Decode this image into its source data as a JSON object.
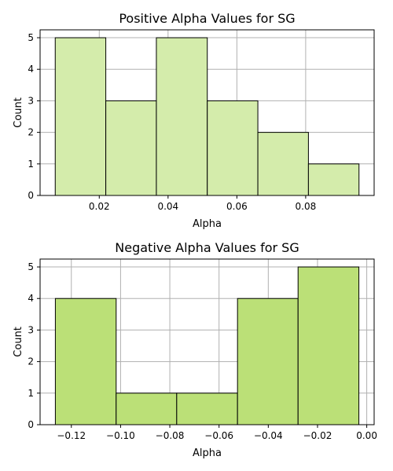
{
  "chart_data": [
    {
      "type": "bar",
      "title": "Positive Alpha Values for SG",
      "xlabel": "Alpha",
      "ylabel": "Count",
      "bins": [
        {
          "x0": 0.0072,
          "x1": 0.0219,
          "count": 5
        },
        {
          "x0": 0.0219,
          "x1": 0.0366,
          "count": 3
        },
        {
          "x0": 0.0366,
          "x1": 0.0514,
          "count": 5
        },
        {
          "x0": 0.0514,
          "x1": 0.0661,
          "count": 3
        },
        {
          "x0": 0.0661,
          "x1": 0.0808,
          "count": 2
        },
        {
          "x0": 0.0808,
          "x1": 0.0955,
          "count": 1
        }
      ],
      "xlim": [
        0.0028,
        0.0999
      ],
      "ylim": [
        0,
        5.25
      ],
      "xticks": [
        0.02,
        0.04,
        0.06,
        0.08
      ],
      "xtick_labels": [
        "0.02",
        "0.04",
        "0.06",
        "0.08"
      ],
      "yticks": [
        0,
        1,
        2,
        3,
        4,
        5
      ],
      "ytick_labels": [
        "0",
        "1",
        "2",
        "3",
        "4",
        "5"
      ],
      "grid": true,
      "bar_color": "#d4ecab",
      "edge_color": "#000000"
    },
    {
      "type": "bar",
      "title": "Negative Alpha Values for SG",
      "xlabel": "Alpha",
      "ylabel": "Count",
      "bins": [
        {
          "x0": -0.1265,
          "x1": -0.1018,
          "count": 4
        },
        {
          "x0": -0.1018,
          "x1": -0.0772,
          "count": 1
        },
        {
          "x0": -0.0772,
          "x1": -0.0525,
          "count": 1
        },
        {
          "x0": -0.0525,
          "x1": -0.0279,
          "count": 4
        },
        {
          "x0": -0.0279,
          "x1": -0.0032,
          "count": 5
        }
      ],
      "xlim": [
        -0.1327,
        0.003
      ],
      "ylim": [
        0,
        5.25
      ],
      "xticks": [
        -0.12,
        -0.1,
        -0.08,
        -0.06,
        -0.04,
        -0.02,
        0.0
      ],
      "xtick_labels": [
        "−0.12",
        "−0.10",
        "−0.08",
        "−0.06",
        "−0.04",
        "−0.02",
        "0.00"
      ],
      "yticks": [
        0,
        1,
        2,
        3,
        4,
        5
      ],
      "ytick_labels": [
        "0",
        "1",
        "2",
        "3",
        "4",
        "5"
      ],
      "grid": true,
      "bar_color": "#bbe077",
      "edge_color": "#000000"
    }
  ]
}
